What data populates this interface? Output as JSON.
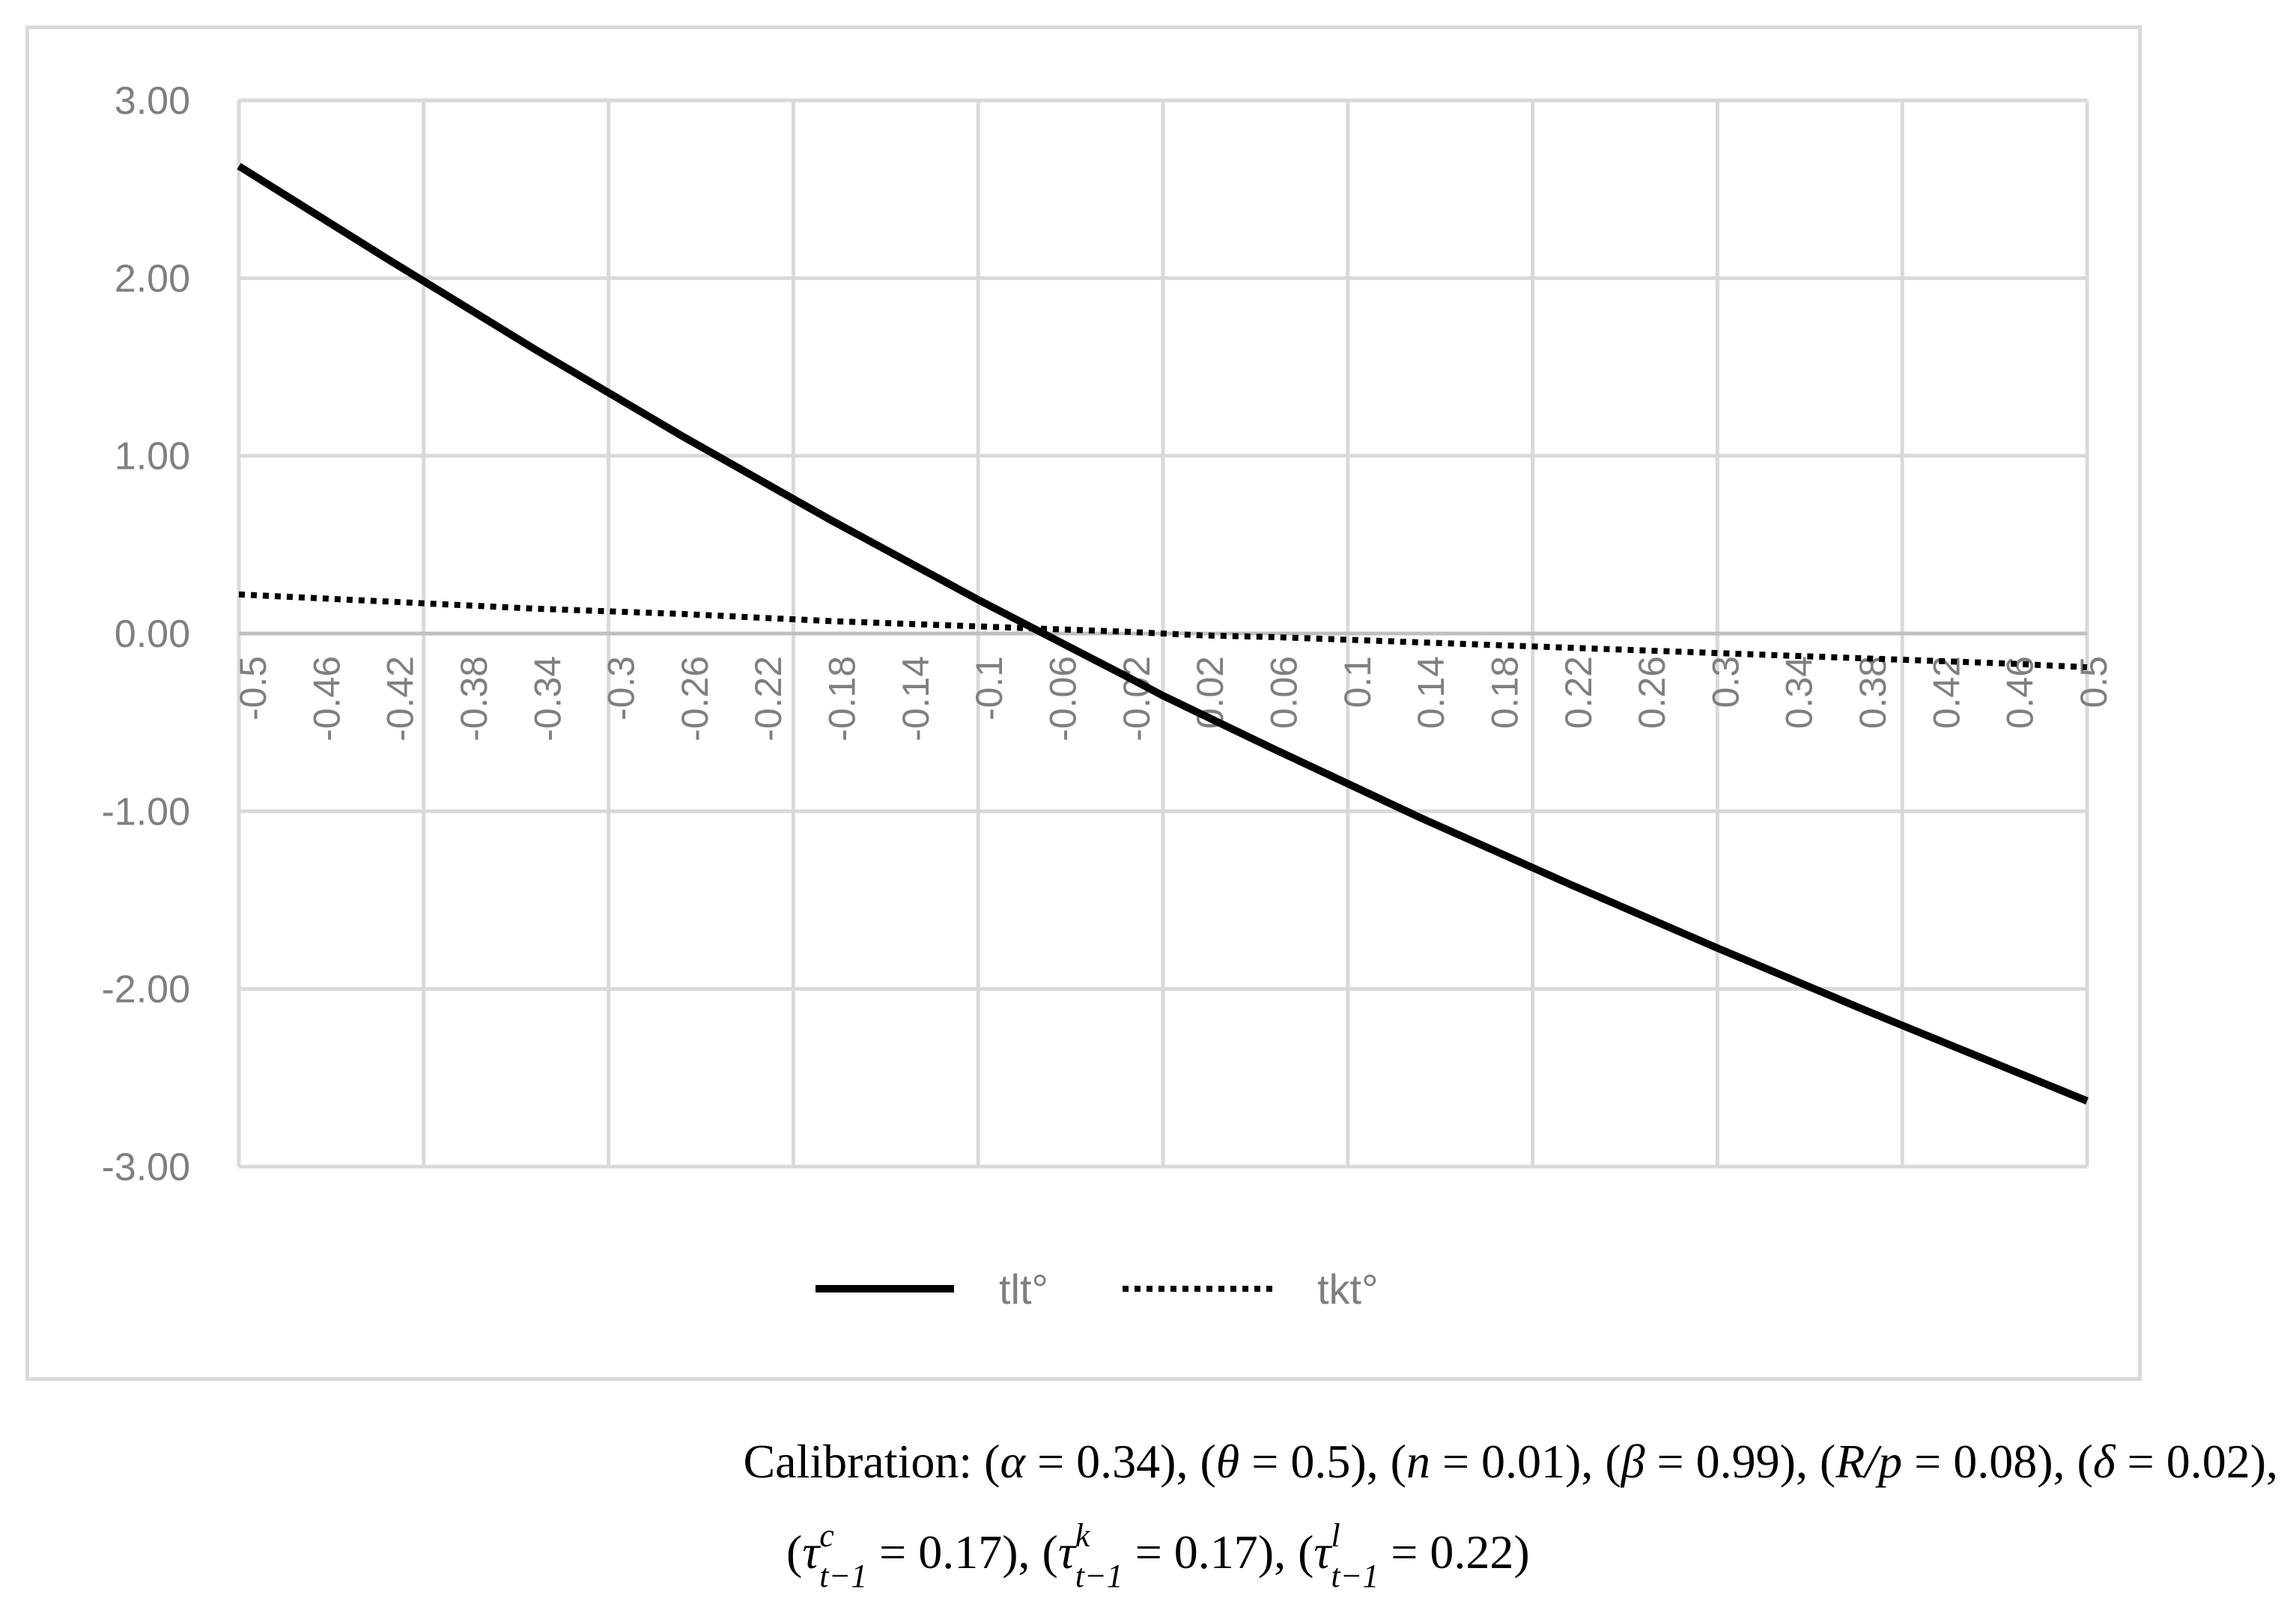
{
  "chart_data": {
    "type": "line",
    "title": "",
    "xlabel": "",
    "ylabel": "",
    "ylim": [
      -3,
      3
    ],
    "y_ticks": [
      "3.00",
      "2.00",
      "1.00",
      "0.00",
      "-1.00",
      "-2.00",
      "-3.00"
    ],
    "x_tick_labels": [
      "-0.5",
      "-0.46",
      "-0.42",
      "-0.38",
      "-0.34",
      "-0.3",
      "-0.26",
      "-0.22",
      "-0.18",
      "-0.14",
      "-0.1",
      "-0.06",
      "-0.02",
      "0.02",
      "0.06",
      "0.1",
      "0.14",
      "0.18",
      "0.22",
      "0.26",
      "0.3",
      "0.34",
      "0.38",
      "0.42",
      "0.46",
      "0.5"
    ],
    "grid": true,
    "legend_position": "bottom",
    "series": [
      {
        "name": "tlt°",
        "style": "solid",
        "x": [
          -0.5,
          -0.42,
          -0.34,
          -0.26,
          -0.18,
          -0.1,
          -0.02,
          0.0,
          0.06,
          0.14,
          0.22,
          0.3,
          0.38,
          0.46,
          0.5
        ],
        "values": [
          2.63,
          2.11,
          1.6,
          1.11,
          0.64,
          0.19,
          -0.24,
          -0.35,
          -0.65,
          -1.04,
          -1.41,
          -1.77,
          -2.12,
          -2.46,
          -2.63
        ]
      },
      {
        "name": "tkt°",
        "style": "dotted",
        "x": [
          -0.5,
          -0.42,
          -0.34,
          -0.26,
          -0.18,
          -0.1,
          -0.02,
          0.02,
          0.06,
          0.14,
          0.22,
          0.3,
          0.38,
          0.46,
          0.5
        ],
        "values": [
          0.22,
          0.18,
          0.14,
          0.11,
          0.07,
          0.04,
          0.01,
          -0.01,
          -0.02,
          -0.05,
          -0.08,
          -0.11,
          -0.14,
          -0.17,
          -0.19
        ]
      }
    ]
  },
  "legend": [
    {
      "label": "tlt°",
      "style": "solid"
    },
    {
      "label": "tkt°",
      "style": "dotted"
    }
  ],
  "colors": {
    "gridline": "#d9d9d9",
    "tick_text": "#7f7f7f",
    "series": "#000000"
  },
  "caption": {
    "prefix": "Calibration: ",
    "line1_items": [
      {
        "sym": "α",
        "op": " = ",
        "val": "0.34"
      },
      {
        "sym": "θ",
        "op": " = ",
        "val": "0.5"
      },
      {
        "sym": "n",
        "op": " = ",
        "val": "0.01"
      },
      {
        "sym": "β",
        "op": " = ",
        "val": "0.99"
      },
      {
        "sym": "R/p",
        "op": " = ",
        "val": "0.08"
      },
      {
        "sym": "δ",
        "op": " = ",
        "val": "0.02"
      }
    ],
    "line2_items": [
      {
        "sym": "τ",
        "sup": "c",
        "sub": "t−1",
        "op": " = ",
        "val": "0.17"
      },
      {
        "sym": "τ",
        "sup": "k",
        "sub": "t−1",
        "op": " = ",
        "val": "0.17"
      },
      {
        "sym": "τ",
        "sup": "l",
        "sub": "t−1",
        "op": " = ",
        "val": "0.22"
      }
    ]
  }
}
